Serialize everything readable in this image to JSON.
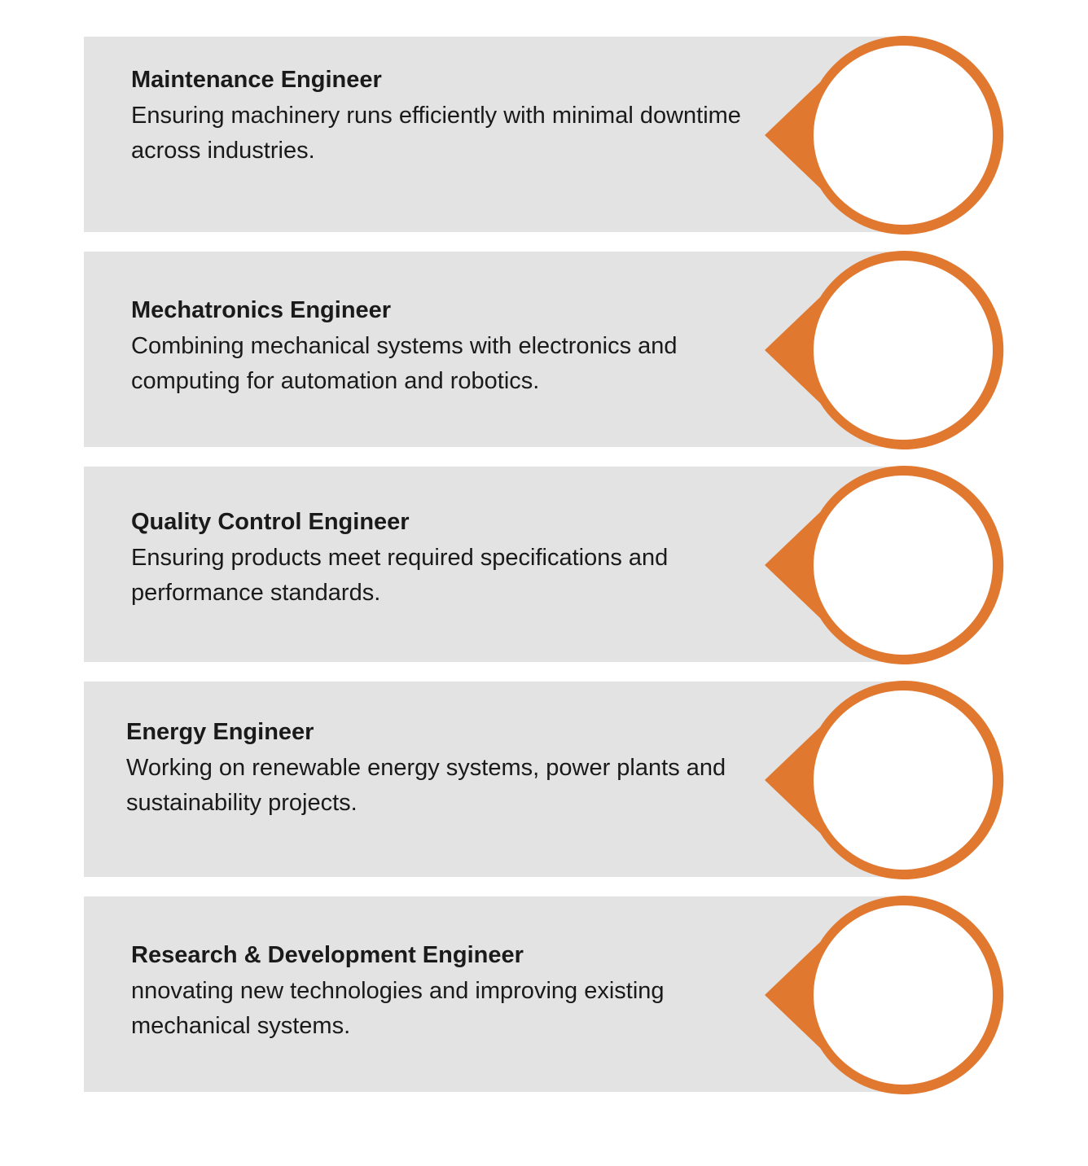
{
  "colors": {
    "accent": "#e07830",
    "card_background": "#e3e3e3",
    "text": "#1a1a1a"
  },
  "items": [
    {
      "title": "Maintenance Engineer",
      "description": "Ensuring machinery runs efficiently with minimal downtime across industries."
    },
    {
      "title": "Mechatronics Engineer",
      "description": "Combining mechanical systems with electronics and computing for automation and robotics."
    },
    {
      "title": "Quality Control Engineer",
      "description": "Ensuring products meet required specifications and performance standards."
    },
    {
      "title": "Energy Engineer",
      "description": "Working on renewable energy systems, power plants and sustainability projects."
    },
    {
      "title": "Research & Development Engineer",
      "description": "nnovating new technologies and improving existing mechanical systems."
    }
  ]
}
